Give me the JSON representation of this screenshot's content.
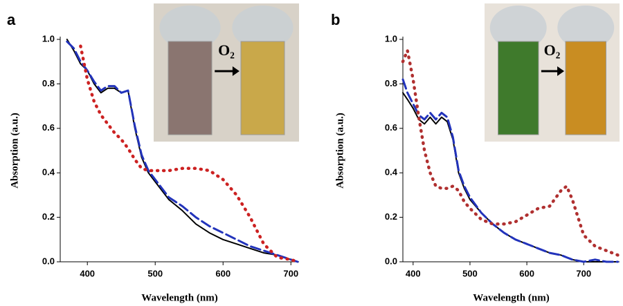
{
  "chart_data": [
    {
      "type": "line",
      "panel_label": "a",
      "inset_label": "O₂",
      "x_label": "Wavelength (nm)",
      "y_label": "Absorption (a.u.)",
      "x": [
        370,
        380,
        390,
        400,
        410,
        420,
        430,
        440,
        450,
        460,
        470,
        480,
        490,
        500,
        520,
        540,
        560,
        580,
        600,
        620,
        640,
        660,
        680,
        700,
        710
      ],
      "xlim": [
        360,
        712
      ],
      "xticks": [
        400,
        500,
        600,
        700
      ],
      "ylim": [
        0,
        1
      ],
      "yticks": [
        {
          "value": 0,
          "label": "0.0"
        },
        0.2,
        0.4,
        0.6,
        0.8,
        {
          "value": 1,
          "label": "1.0"
        }
      ],
      "series": [
        {
          "color": "#000000",
          "linestyle": "solid",
          "values": [
            1.0,
            0.95,
            0.89,
            0.86,
            0.8,
            0.76,
            0.78,
            0.78,
            0.76,
            0.77,
            0.6,
            0.47,
            0.4,
            0.36,
            0.28,
            0.23,
            0.17,
            0.13,
            0.1,
            0.08,
            0.06,
            0.04,
            0.03,
            0.01,
            0.0
          ]
        },
        {
          "color": "#2233bb",
          "linestyle": "dashed",
          "values": [
            0.99,
            0.96,
            0.9,
            0.86,
            0.81,
            0.77,
            0.79,
            0.79,
            0.76,
            0.77,
            0.61,
            0.48,
            0.41,
            0.37,
            0.29,
            0.25,
            0.2,
            0.16,
            0.13,
            0.1,
            0.07,
            0.05,
            0.03,
            0.01,
            0.0
          ]
        },
        {
          "color": "#cc2222",
          "linestyle": "dotted",
          "values": [
            null,
            null,
            0.97,
            0.82,
            0.72,
            0.66,
            0.62,
            0.58,
            0.55,
            0.51,
            0.46,
            0.42,
            0.41,
            0.41,
            0.41,
            0.42,
            0.42,
            0.41,
            0.37,
            0.3,
            0.2,
            0.08,
            0.02,
            0.01,
            0.0
          ]
        }
      ]
    },
    {
      "type": "line",
      "panel_label": "b",
      "inset_label": "O₂",
      "x_label": "Wavelength (nm)",
      "y_label": "Absorption (a.u.)",
      "x": [
        382,
        390,
        400,
        410,
        420,
        430,
        440,
        450,
        460,
        470,
        480,
        490,
        500,
        520,
        540,
        560,
        580,
        600,
        620,
        640,
        660,
        670,
        680,
        700,
        720,
        740,
        760
      ],
      "xlim": [
        382,
        763
      ],
      "xticks": [
        400,
        500,
        600,
        700
      ],
      "ylim": [
        0,
        1
      ],
      "yticks": [
        {
          "value": 0,
          "label": "0.0"
        },
        0.2,
        0.4,
        0.6,
        0.8,
        {
          "value": 1,
          "label": "1.0"
        }
      ],
      "series": [
        {
          "color": "#000000",
          "linestyle": "solid",
          "values": [
            0.76,
            0.73,
            0.69,
            0.64,
            0.62,
            0.65,
            0.62,
            0.65,
            0.63,
            0.55,
            0.4,
            0.33,
            0.28,
            0.22,
            0.17,
            0.13,
            0.1,
            0.08,
            0.06,
            0.04,
            0.03,
            0.02,
            0.01,
            0.0,
            0.0,
            0.0,
            0.0
          ]
        },
        {
          "color": "#2233bb",
          "linestyle": "dashed",
          "values": [
            0.82,
            0.76,
            0.71,
            0.66,
            0.64,
            0.67,
            0.64,
            0.67,
            0.65,
            0.56,
            0.41,
            0.34,
            0.29,
            0.22,
            0.17,
            0.13,
            0.1,
            0.08,
            0.06,
            0.04,
            0.03,
            0.02,
            0.01,
            0.0,
            0.01,
            0.0,
            0.0
          ]
        },
        {
          "color": "#b03030",
          "linestyle": "dotted",
          "values": [
            0.9,
            0.95,
            0.82,
            0.65,
            0.5,
            0.4,
            0.34,
            0.33,
            0.33,
            0.34,
            0.32,
            0.27,
            0.24,
            0.19,
            0.17,
            0.17,
            0.18,
            0.21,
            0.24,
            0.25,
            0.32,
            0.34,
            0.28,
            0.12,
            0.07,
            0.05,
            0.03
          ]
        }
      ]
    }
  ]
}
